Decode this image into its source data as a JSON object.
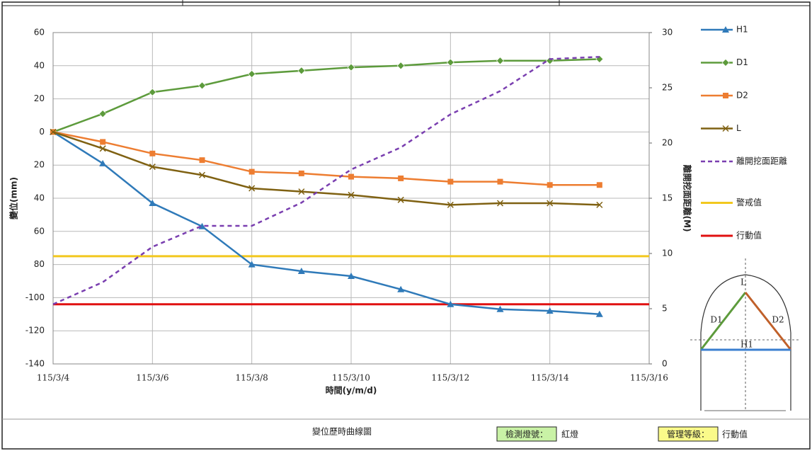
{
  "chart_data": {
    "type": "line",
    "y_label": "變位(mm)",
    "y2_label": "離開挖面距離(M)",
    "x_label": "時間(y/m/d)",
    "x": [
      "115/3/4",
      "115/3/5",
      "115/3/6",
      "115/3/7",
      "115/3/8",
      "115/3/9",
      "115/3/10",
      "115/3/11",
      "115/3/12",
      "115/3/13",
      "115/3/14",
      "115/3/15"
    ],
    "xlim": [
      "115/3/4",
      "115/3/16"
    ],
    "xticks": [
      "115/3/4",
      "115/3/6",
      "115/3/8",
      "115/3/10",
      "115/3/12",
      "115/3/14",
      "115/3/16"
    ],
    "ylim": [
      -140,
      60
    ],
    "yticks": [
      {
        "value": -140,
        "label": "-140"
      },
      {
        "value": -120,
        "label": "-120"
      },
      {
        "value": -100,
        "label": "-100"
      },
      {
        "value": -80,
        "label": "80"
      },
      {
        "value": -60,
        "label": "60"
      },
      {
        "value": -40,
        "label": "40"
      },
      {
        "value": -20,
        "label": "20"
      },
      0,
      20,
      40,
      60
    ],
    "y2lim": [
      0,
      30
    ],
    "y2ticks": [
      0,
      5,
      10,
      15,
      20,
      25,
      30
    ],
    "grid": true,
    "series": [
      {
        "name": "H1",
        "color": "#2f7ab9",
        "marker": "triangle",
        "values": [
          0,
          -19,
          -43,
          -57,
          -80,
          -84,
          -87,
          -95,
          -104,
          -107,
          -108,
          -110
        ]
      },
      {
        "name": "D1",
        "color": "#5d9b3c",
        "marker": "diamond",
        "values": [
          0,
          11,
          24,
          28,
          35,
          37,
          39,
          40,
          42,
          43,
          43,
          44
        ]
      },
      {
        "name": "D2",
        "color": "#ed7d31",
        "marker": "square",
        "values": [
          0,
          -6,
          -13,
          -17,
          -24,
          -25,
          -27,
          -28,
          -30,
          -30,
          -32,
          -32
        ]
      },
      {
        "name": "L",
        "color": "#7f6112",
        "marker": "x",
        "values": [
          0,
          -10,
          -21,
          -26,
          -34,
          -36,
          -38,
          -41,
          -44,
          -43,
          -43,
          -44
        ]
      },
      {
        "name": "離開挖面距離",
        "color": "#7a3fb0",
        "dashed": true,
        "axis": "y2",
        "values": [
          5.4,
          7.4,
          10.6,
          12.5,
          12.5,
          14.6,
          17.6,
          19.6,
          22.6,
          24.7,
          27.6,
          27.8
        ]
      }
    ],
    "thresholds": [
      {
        "name": "警戒值",
        "color": "#f2c81e",
        "value": -75
      },
      {
        "name": "行動值",
        "color": "#e01010",
        "value": -104
      }
    ]
  },
  "diagram": {
    "labels": [
      "L",
      "D1",
      "D2",
      "H1"
    ]
  },
  "footer": {
    "title": "變位歷時曲線圖",
    "light_label": "檢測燈號：",
    "light_value": "紅燈",
    "level_label": "管理等級：",
    "level_value": "行動值"
  }
}
